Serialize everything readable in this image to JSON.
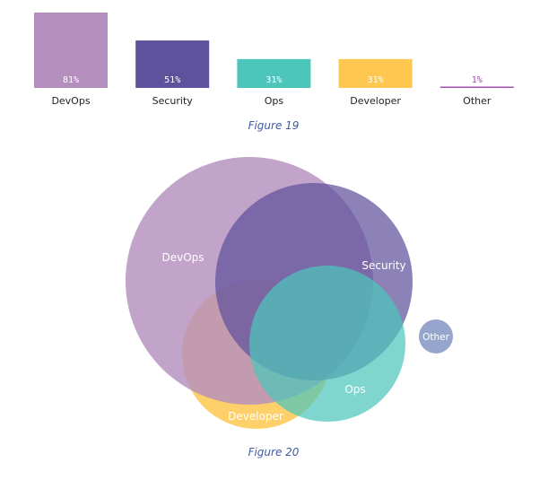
{
  "chart_data": [
    {
      "type": "bar",
      "categories": [
        "DevOps",
        "Security",
        "Ops",
        "Developer",
        "Other"
      ],
      "values": [
        81,
        51,
        31,
        31,
        1
      ],
      "value_labels": [
        "81%",
        "51%",
        "31%",
        "31%",
        "1%"
      ],
      "colors": [
        "#b48fbd",
        "#5f529c",
        "#4cc6bb",
        "#fec850",
        "#9e4fa9"
      ],
      "ylim": [
        0,
        81
      ],
      "caption": "Figure 19"
    },
    {
      "type": "venn",
      "sets": [
        "DevOps",
        "Security",
        "Ops",
        "Developer",
        "Other"
      ],
      "set_sizes": [
        81,
        51,
        31,
        31,
        1
      ],
      "colors": [
        "#b48fbd",
        "#5f529c",
        "#4cc6bb",
        "#fec850",
        "#8b9bc7"
      ],
      "caption": "Figure 20"
    }
  ]
}
